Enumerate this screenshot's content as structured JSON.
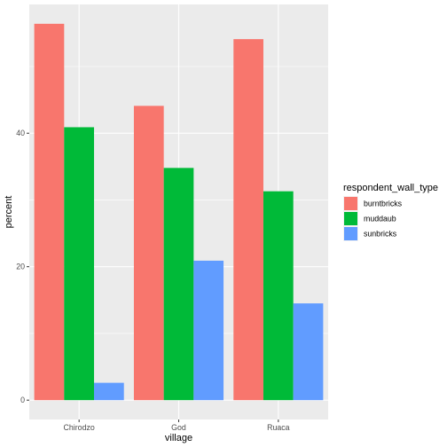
{
  "chart_data": {
    "type": "bar",
    "xlabel": "village",
    "ylabel": "percent",
    "categories": [
      "Chirodzo",
      "God",
      "Ruaca"
    ],
    "series": [
      {
        "name": "burntbricks",
        "color": "#F8766D",
        "values": [
          56.4,
          44.1,
          54.1
        ]
      },
      {
        "name": "muddaub",
        "color": "#00BA38",
        "values": [
          40.9,
          34.8,
          31.3
        ]
      },
      {
        "name": "sunbricks",
        "color": "#619CFF",
        "values": [
          2.6,
          20.9,
          14.5
        ]
      }
    ],
    "legend": {
      "title": "respondent_wall_type",
      "position": "right"
    },
    "ylim": [
      -2.9,
      59.3
    ],
    "yticks": [
      0,
      20,
      40
    ],
    "ytick_labels": [
      "0",
      "20",
      "40"
    ],
    "grid": true,
    "panel_background": "#EBEBEB"
  }
}
